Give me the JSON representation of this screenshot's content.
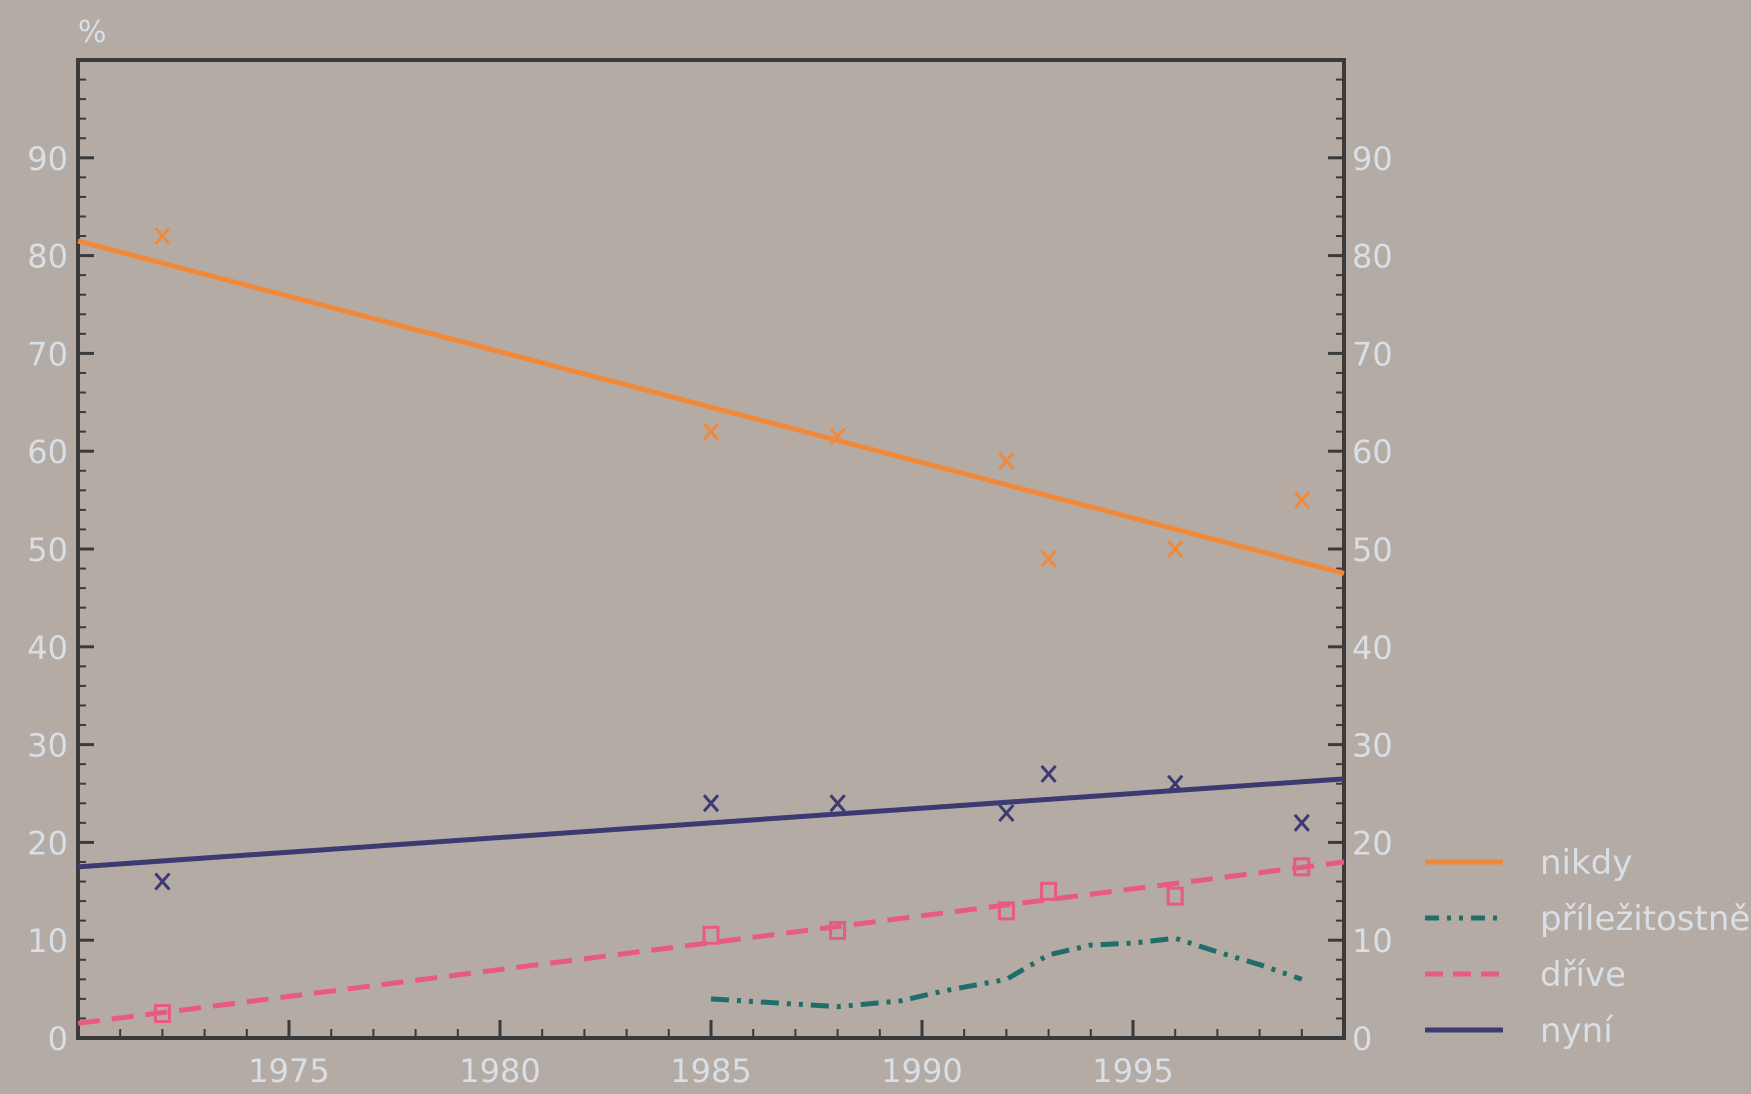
{
  "chart_data": {
    "type": "line",
    "unit_label": "%",
    "x_range": [
      1970,
      2000
    ],
    "y_range": [
      0,
      100
    ],
    "x_ticks": [
      1975,
      1980,
      1985,
      1990,
      1995
    ],
    "y_ticks": [
      0,
      10,
      20,
      30,
      40,
      50,
      60,
      70,
      80,
      90
    ],
    "y_axis_right": true,
    "grid": false,
    "legend_position": "right",
    "series": [
      {
        "name": "nikdy",
        "color": "#f08a3a",
        "line_style": "solid",
        "marker": "x",
        "points": [
          [
            1972,
            82
          ],
          [
            1985,
            62
          ],
          [
            1988,
            61.5
          ],
          [
            1992,
            59
          ],
          [
            1993,
            49
          ],
          [
            1996,
            50
          ],
          [
            1999,
            55
          ]
        ],
        "trend": [
          [
            1970,
            81.5
          ],
          [
            2000,
            47.5
          ]
        ]
      },
      {
        "name": "příležitostně",
        "color": "#1f6e6a",
        "line_style": "dash-dot",
        "marker": "none",
        "points": [
          [
            1985,
            4
          ],
          [
            1986.5,
            3.6
          ],
          [
            1988,
            3.2
          ],
          [
            1989.5,
            3.8
          ],
          [
            1990.5,
            4.8
          ],
          [
            1992,
            6
          ],
          [
            1993,
            8.5
          ],
          [
            1994,
            9.5
          ],
          [
            1995,
            9.7
          ],
          [
            1996,
            10.2
          ],
          [
            1997,
            8.8
          ],
          [
            1998,
            7.5
          ],
          [
            1999,
            6
          ]
        ],
        "trend": []
      },
      {
        "name": "dříve",
        "color": "#e85a82",
        "line_style": "dashed",
        "marker": "square",
        "points": [
          [
            1972,
            2.5
          ],
          [
            1985,
            10.5
          ],
          [
            1988,
            11
          ],
          [
            1992,
            13
          ],
          [
            1993,
            15
          ],
          [
            1996,
            14.5
          ],
          [
            1999,
            17.5
          ]
        ],
        "trend": [
          [
            1970,
            1.5
          ],
          [
            2000,
            18
          ]
        ]
      },
      {
        "name": "nyní",
        "color": "#3d3a72",
        "line_style": "solid",
        "marker": "x",
        "points": [
          [
            1972,
            16
          ],
          [
            1985,
            24
          ],
          [
            1988,
            24
          ],
          [
            1992,
            23
          ],
          [
            1993,
            27
          ],
          [
            1996,
            26
          ],
          [
            1999,
            22
          ]
        ],
        "trend": [
          [
            1970,
            17.5
          ],
          [
            2000,
            26.5
          ]
        ]
      }
    ]
  }
}
